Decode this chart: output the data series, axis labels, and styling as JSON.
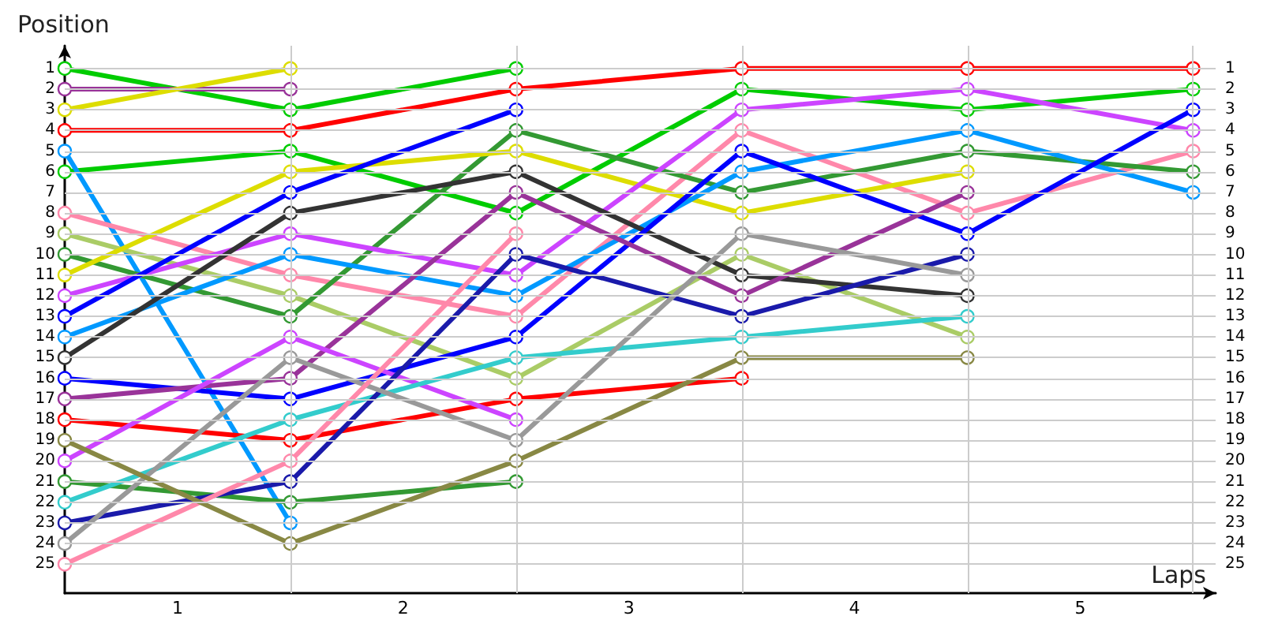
{
  "chart_data": {
    "type": "line",
    "ylabel": "Position",
    "xlabel": "Laps",
    "x": [
      0,
      1,
      2,
      3,
      4,
      5
    ],
    "xlim": [
      0,
      5.1
    ],
    "xticks": [
      {
        "value": 0.5,
        "label": "1"
      },
      {
        "value": 1.5,
        "label": "2"
      },
      {
        "value": 2.5,
        "label": "3"
      },
      {
        "value": 3.5,
        "label": "4"
      },
      {
        "value": 4.5,
        "label": "5"
      }
    ],
    "ylim": [
      26.4,
      -0.1
    ],
    "yticks": [
      1,
      2,
      3,
      4,
      5,
      6,
      7,
      8,
      9,
      10,
      11,
      12,
      13,
      14,
      15,
      16,
      17,
      18,
      19,
      20,
      21,
      22,
      23,
      24,
      25
    ],
    "y2lim": [
      26.4,
      -0.1
    ],
    "y2ticks": [
      1,
      2,
      3,
      4,
      5,
      6,
      7,
      8,
      9,
      10,
      11,
      12,
      13,
      14,
      15,
      16,
      17,
      18,
      19,
      20,
      21,
      22,
      23,
      24,
      25
    ],
    "grid": "y",
    "marker": "circle",
    "line_style": "solid",
    "ref_lines": [
      {
        "axis": "x",
        "value": 1,
        "color": "#cccccc"
      },
      {
        "axis": "x",
        "value": 2,
        "color": "#cccccc"
      },
      {
        "axis": "x",
        "value": 3,
        "color": "#cccccc"
      },
      {
        "axis": "x",
        "value": 4,
        "color": "#cccccc"
      },
      {
        "axis": "x",
        "value": 5,
        "color": "#cccccc"
      }
    ],
    "series": [
      {
        "color": "#00cc00",
        "values": [
          1,
          3,
          1,
          null,
          null,
          null
        ]
      },
      {
        "color": "#00cc00",
        "values": [
          6,
          5,
          8,
          2,
          3,
          2
        ]
      },
      {
        "color": "#993399",
        "values": [
          2,
          2,
          null,
          null,
          null,
          null
        ]
      },
      {
        "color": "#dddd00",
        "values": [
          3,
          1,
          null,
          null,
          null,
          null
        ]
      },
      {
        "color": "#ff0000",
        "values": [
          4,
          4,
          2,
          1,
          1,
          1
        ]
      },
      {
        "color": "#0099ff",
        "values": [
          5,
          23,
          null,
          null,
          null,
          null
        ]
      },
      {
        "color": "#ff88aa",
        "values": [
          8,
          11,
          13,
          4,
          8,
          5
        ]
      },
      {
        "color": "#aacc66",
        "values": [
          9,
          12,
          16,
          10,
          14,
          null
        ]
      },
      {
        "color": "#339933",
        "values": [
          10,
          13,
          4,
          7,
          5,
          6
        ]
      },
      {
        "color": "#dddd00",
        "values": [
          11,
          6,
          5,
          8,
          6,
          null
        ]
      },
      {
        "color": "#cc44ff",
        "values": [
          12,
          9,
          11,
          3,
          2,
          4
        ]
      },
      {
        "color": "#0000ff",
        "values": [
          13,
          7,
          3,
          null,
          null,
          null
        ]
      },
      {
        "color": "#0099ff",
        "values": [
          14,
          10,
          12,
          6,
          4,
          7
        ]
      },
      {
        "color": "#333333",
        "values": [
          15,
          8,
          6,
          11,
          12,
          null
        ]
      },
      {
        "color": "#0000ff",
        "values": [
          16,
          17,
          14,
          5,
          9,
          3
        ]
      },
      {
        "color": "#993399",
        "values": [
          17,
          16,
          7,
          12,
          7,
          null
        ]
      },
      {
        "color": "#ff0000",
        "values": [
          18,
          19,
          17,
          16,
          null,
          null
        ]
      },
      {
        "color": "#cc44ff",
        "values": [
          20,
          14,
          18,
          null,
          null,
          null
        ]
      },
      {
        "color": "#339933",
        "values": [
          21,
          22,
          21,
          null,
          null,
          null
        ]
      },
      {
        "color": "#33cccc",
        "values": [
          22,
          18,
          15,
          14,
          13,
          null
        ]
      },
      {
        "color": "#1a1aaa",
        "values": [
          23,
          21,
          10,
          13,
          10,
          null
        ]
      },
      {
        "color": "#999999",
        "values": [
          24,
          15,
          19,
          9,
          11,
          null
        ]
      },
      {
        "color": "#ff88aa",
        "values": [
          25,
          20,
          9,
          null,
          null,
          null
        ]
      },
      {
        "color": "#888844",
        "values": [
          19,
          24,
          20,
          15,
          15,
          null
        ]
      }
    ]
  }
}
